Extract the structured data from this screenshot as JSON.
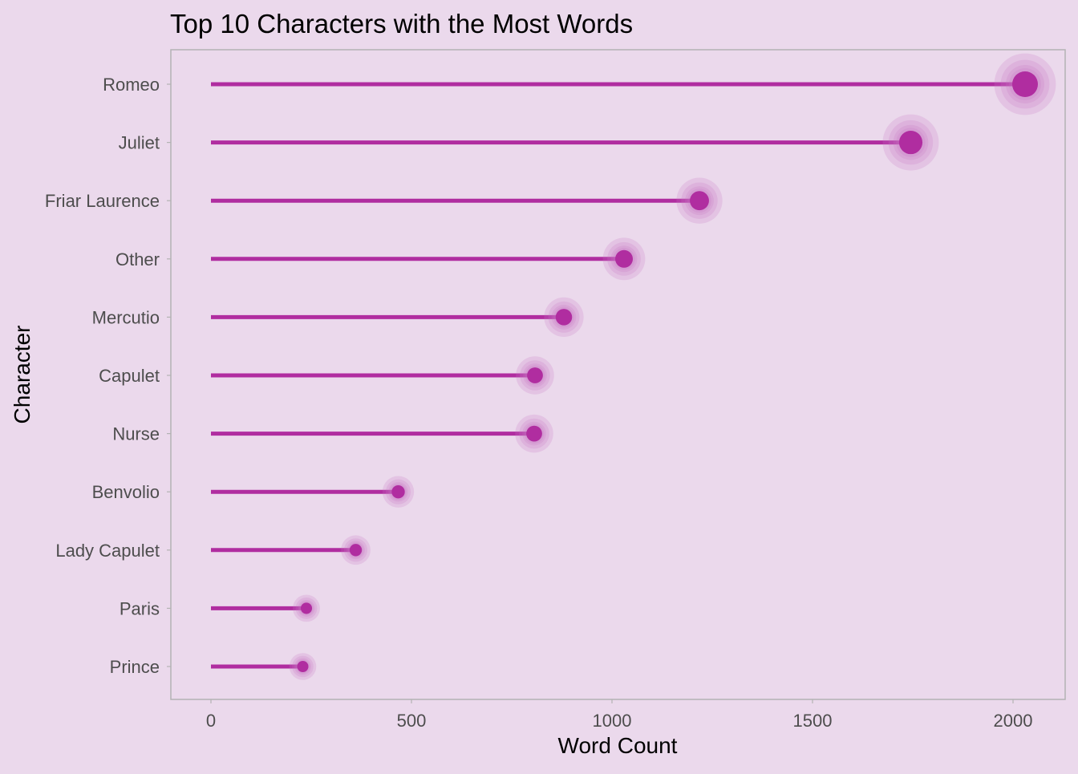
{
  "chart_data": {
    "type": "lollipop",
    "title": "Top 10 Characters with the Most Words",
    "xlabel": "Word Count",
    "ylabel": "Character",
    "xlim": [
      -100,
      2130
    ],
    "xticks": [
      0,
      500,
      1000,
      1500,
      2000
    ],
    "grid": false,
    "legend": "none",
    "categories": [
      "Romeo",
      "Juliet",
      "Friar Laurence",
      "Other",
      "Mercutio",
      "Capulet",
      "Nurse",
      "Benvolio",
      "Lady Capulet",
      "Paris",
      "Prince"
    ],
    "values": [
      2030,
      1745,
      1218,
      1030,
      880,
      808,
      806,
      467,
      361,
      238,
      229
    ],
    "colors": {
      "background": "#EBD9EC",
      "panel_border": "#B3B3B3",
      "stem": "#B02DA0",
      "point": "#B02DA0",
      "halo": "#C778C4",
      "tick_label": "#4D4D4D"
    }
  }
}
